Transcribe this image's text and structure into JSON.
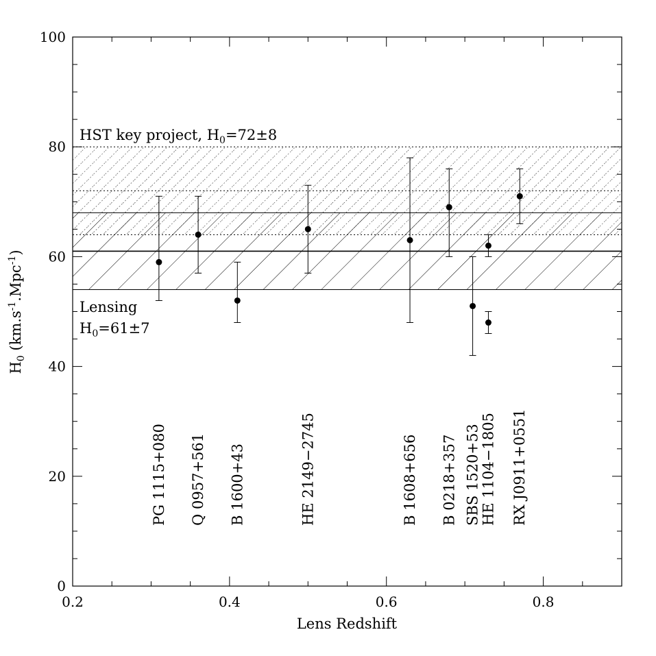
{
  "chart_data": {
    "type": "scatter",
    "xlabel": "Lens Redshift",
    "ylabel_main": "H",
    "ylabel_sub": "0",
    "ylabel_rest": " (km.s",
    "ylabel_sup1": "-1",
    "ylabel_mid": ".Mpc",
    "ylabel_sup2": "-1",
    "ylabel_end": ")",
    "xlim": [
      0.2,
      0.9
    ],
    "ylim": [
      0,
      100
    ],
    "x_ticks": [
      {
        "value": 0.2,
        "label": "0.2"
      },
      {
        "value": 0.4,
        "label": "0.4"
      },
      {
        "value": 0.6,
        "label": "0.6"
      },
      {
        "value": 0.8,
        "label": "0.8"
      }
    ],
    "y_ticks": [
      {
        "value": 0,
        "label": "0"
      },
      {
        "value": 20,
        "label": "20"
      },
      {
        "value": 40,
        "label": "40"
      },
      {
        "value": 60,
        "label": "60"
      },
      {
        "value": 80,
        "label": "80"
      },
      {
        "value": 100,
        "label": "100"
      }
    ],
    "bands": [
      {
        "name": "hst",
        "center": 72,
        "low": 64,
        "high": 80,
        "style": "dotted-hatch"
      },
      {
        "name": "lensing",
        "center": 61,
        "low": 54,
        "high": 68,
        "style": "hatch"
      }
    ],
    "annotations": {
      "hst": {
        "prefix": "HST key project, H",
        "sub": "0",
        "suffix": "=72±8"
      },
      "lensing_line1": "Lensing",
      "lensing_line2": {
        "prefix": "H",
        "sub": "0",
        "suffix": "=61±7"
      }
    },
    "points": [
      {
        "x": 0.31,
        "y": 59,
        "low": 52,
        "high": 71
      },
      {
        "x": 0.36,
        "y": 64,
        "low": 57,
        "high": 71
      },
      {
        "x": 0.41,
        "y": 52,
        "low": 48,
        "high": 59
      },
      {
        "x": 0.5,
        "y": 65,
        "low": 57,
        "high": 73
      },
      {
        "x": 0.63,
        "y": 63,
        "low": 48,
        "high": 78
      },
      {
        "x": 0.68,
        "y": 69,
        "low": 60,
        "high": 76
      },
      {
        "x": 0.71,
        "y": 51,
        "low": 42,
        "high": 60
      },
      {
        "x": 0.73,
        "y": 62,
        "low": 60,
        "high": 64
      },
      {
        "x": 0.73,
        "y": 48,
        "low": 46,
        "high": 50
      },
      {
        "x": 0.77,
        "y": 71,
        "low": 66,
        "high": 76
      }
    ],
    "lens_labels": [
      {
        "x": 0.31,
        "text": "PG 1115+080"
      },
      {
        "x": 0.36,
        "text": "Q 0957+561"
      },
      {
        "x": 0.41,
        "text": "B 1600+43"
      },
      {
        "x": 0.5,
        "text": "HE 2149−2745"
      },
      {
        "x": 0.63,
        "text": "B 1608+656"
      },
      {
        "x": 0.68,
        "text": "B 0218+357"
      },
      {
        "x": 0.71,
        "text": "SBS 1520+53"
      },
      {
        "x": 0.73,
        "text": "HE 1104−1805"
      },
      {
        "x": 0.77,
        "text": "RX J0911+0551"
      }
    ],
    "lens_label_baseline_y": 11
  }
}
